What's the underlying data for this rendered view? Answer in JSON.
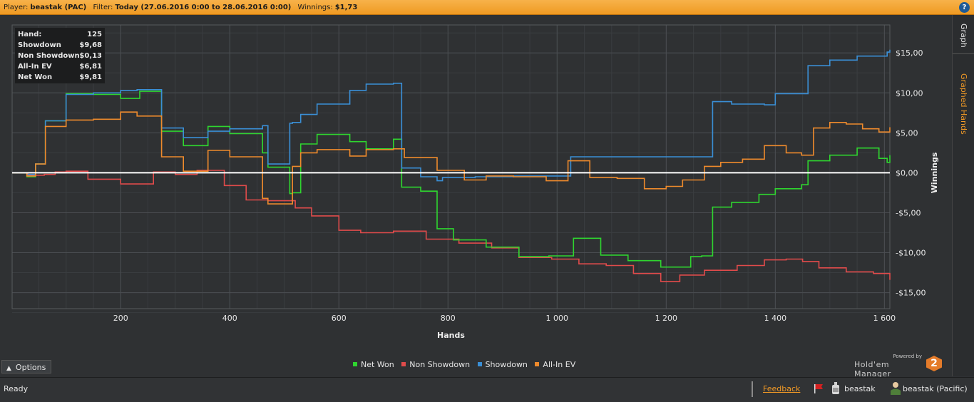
{
  "top_bar": {
    "player_label": "Player:",
    "player_value": "beastak (PAC)",
    "filter_label": "Filter:",
    "filter_value": "Today (27.06.2016 0:00 to 28.06.2016 0:00)",
    "winnings_label": "Winnings:",
    "winnings_value": "$1,73",
    "help_label": "?"
  },
  "side_tabs": {
    "graph": "Graph",
    "graphed_hands": "Graphed Hands"
  },
  "stats": [
    {
      "label": "Hand:",
      "value": "125"
    },
    {
      "label": "Showdown",
      "value": "$9,68"
    },
    {
      "label": "Non Showdown",
      "value": "$0,13"
    },
    {
      "label": "All-In EV",
      "value": "$6,81"
    },
    {
      "label": "Net Won",
      "value": "$9,81"
    }
  ],
  "options_label": "Options",
  "powered_by": {
    "small": "Powered by",
    "name": "Hold'em Manager",
    "version": "2"
  },
  "status_bar": {
    "status": "Ready",
    "feedback": "Feedback",
    "user": "beastak",
    "user_site": "beastak (Pacific)"
  },
  "colors": {
    "net_won": "#2fd52f",
    "non_showdown": "#e14b4b",
    "showdown": "#3a8fd6",
    "all_in_ev": "#ee8a2c",
    "accent": "#f29a26"
  },
  "chart_data": {
    "type": "line",
    "xlabel": "Hands",
    "ylabel": "Winnings",
    "xlim": [
      1,
      1610
    ],
    "ylim": [
      -17,
      18.5
    ],
    "x_ticks": [
      200,
      400,
      600,
      800,
      1000,
      1200,
      1400,
      1600
    ],
    "x_tick_labels": [
      "200",
      "400",
      "600",
      "800",
      "1 000",
      "1 200",
      "1 400",
      "1 600"
    ],
    "y_ticks": [
      15,
      10,
      5,
      0,
      -5,
      -10,
      -15
    ],
    "y_tick_labels": [
      "$15,00",
      "$10,00",
      "$5,00",
      "$0,00",
      "-$5,00",
      "-$10,00",
      "-$15,00"
    ],
    "grid": true,
    "legend_position": "bottom-center",
    "zero_line": true,
    "series": [
      {
        "name": "Net Won",
        "color": "#2fd52f",
        "x": [
          1,
          28,
          44,
          62,
          100,
          150,
          200,
          235,
          275,
          315,
          360,
          400,
          460,
          470,
          510,
          515,
          530,
          560,
          620,
          650,
          700,
          715,
          750,
          780,
          810,
          870,
          930,
          985,
          1030,
          1080,
          1130,
          1190,
          1245,
          1265,
          1285,
          1320,
          1370,
          1400,
          1448,
          1460,
          1500,
          1550,
          1590,
          1605,
          1610
        ],
        "values": [
          0,
          -0.5,
          1.1,
          6.5,
          9.9,
          9.8,
          9.3,
          10.2,
          5.2,
          3.4,
          5.8,
          4.9,
          2.5,
          0.7,
          -2.6,
          -2.5,
          3.6,
          4.8,
          3.9,
          3.0,
          4.2,
          -1.8,
          -2.3,
          -7.0,
          -8.4,
          -9.3,
          -10.5,
          -10.4,
          -8.2,
          -10.3,
          -11.0,
          -11.8,
          -10.5,
          -10.4,
          -4.3,
          -3.7,
          -2.7,
          -2.0,
          -1.5,
          1.5,
          2.2,
          3.1,
          1.8,
          1.3,
          2.2
        ]
      },
      {
        "name": "Non Showdown",
        "color": "#e14b4b",
        "x": [
          1,
          30,
          60,
          80,
          100,
          140,
          200,
          260,
          300,
          340,
          390,
          430,
          470,
          520,
          550,
          600,
          640,
          700,
          760,
          820,
          880,
          930,
          990,
          1040,
          1090,
          1140,
          1190,
          1225,
          1270,
          1330,
          1380,
          1420,
          1450,
          1480,
          1530,
          1580,
          1610
        ],
        "values": [
          0,
          -0.3,
          -0.2,
          0.1,
          0.2,
          -0.8,
          -1.4,
          0.1,
          -0.2,
          0.3,
          -1.6,
          -3.4,
          -3.5,
          -4.4,
          -5.4,
          -7.2,
          -7.5,
          -7.3,
          -8.3,
          -8.8,
          -9.4,
          -10.6,
          -10.8,
          -11.4,
          -11.6,
          -12.6,
          -13.6,
          -12.8,
          -12.2,
          -11.6,
          -10.9,
          -10.8,
          -11.1,
          -11.9,
          -12.4,
          -12.6,
          -13.4
        ]
      },
      {
        "name": "Showdown",
        "color": "#3a8fd6",
        "x": [
          1,
          28,
          44,
          62,
          100,
          150,
          200,
          230,
          275,
          315,
          360,
          400,
          460,
          470,
          510,
          515,
          530,
          560,
          620,
          650,
          700,
          715,
          750,
          780,
          790,
          850,
          920,
          985,
          1025,
          1100,
          1180,
          1250,
          1265,
          1285,
          1320,
          1380,
          1400,
          1448,
          1460,
          1500,
          1550,
          1600,
          1605,
          1610
        ],
        "values": [
          0,
          -0.2,
          1.1,
          6.5,
          9.8,
          10.0,
          10.3,
          10.4,
          5.6,
          4.4,
          5.2,
          5.5,
          5.9,
          1.1,
          6.2,
          6.3,
          7.3,
          8.6,
          10.3,
          11.1,
          11.2,
          0.6,
          -0.5,
          -1.0,
          -0.6,
          -0.5,
          -0.4,
          -0.4,
          2.0,
          2.0,
          2.0,
          2.0,
          2.0,
          8.9,
          8.6,
          8.5,
          9.9,
          9.9,
          13.4,
          14.1,
          14.6,
          14.6,
          15.1,
          15.4
        ]
      },
      {
        "name": "All-In EV",
        "color": "#ee8a2c",
        "x": [
          1,
          28,
          44,
          62,
          100,
          150,
          200,
          230,
          275,
          315,
          360,
          400,
          460,
          470,
          510,
          515,
          530,
          560,
          620,
          650,
          700,
          720,
          780,
          830,
          870,
          920,
          980,
          1020,
          1060,
          1110,
          1160,
          1200,
          1230,
          1270,
          1300,
          1340,
          1380,
          1420,
          1448,
          1470,
          1500,
          1530,
          1560,
          1590,
          1610
        ],
        "values": [
          0,
          -0.4,
          1.1,
          5.8,
          6.6,
          6.7,
          7.6,
          7.1,
          2.0,
          0.2,
          2.8,
          2.0,
          -3.2,
          -3.9,
          -3.9,
          0.8,
          2.5,
          2.9,
          2.1,
          2.9,
          3.0,
          1.9,
          0.3,
          -0.9,
          -0.4,
          -0.5,
          -1.0,
          1.5,
          -0.6,
          -0.7,
          -2.0,
          -1.7,
          -0.9,
          0.8,
          1.3,
          1.7,
          3.4,
          2.5,
          2.2,
          5.6,
          6.3,
          6.1,
          5.5,
          5.1,
          5.7
        ]
      }
    ]
  }
}
